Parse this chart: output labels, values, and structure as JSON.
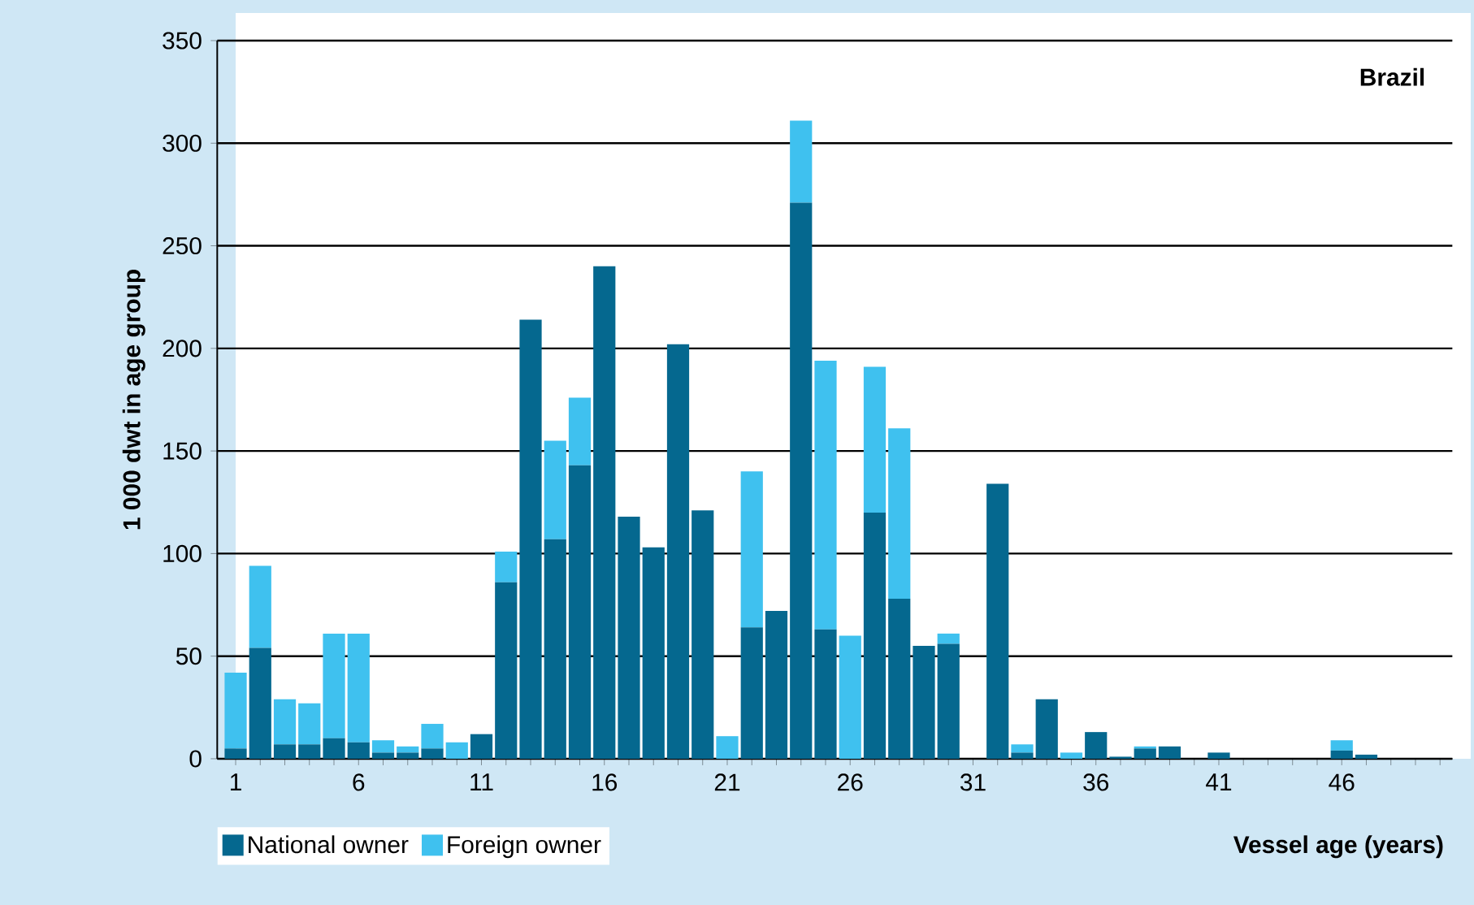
{
  "chart_data": {
    "type": "bar",
    "title": "Brazil",
    "xlabel": "Vessel age (years)",
    "ylabel": "1 000 dwt in age group",
    "categories": [
      "1",
      null,
      null,
      null,
      null,
      "6",
      null,
      null,
      null,
      null,
      "11",
      null,
      null,
      null,
      null,
      "16",
      null,
      null,
      null,
      null,
      "21",
      null,
      null,
      null,
      null,
      "26",
      null,
      null,
      null,
      null,
      "31",
      null,
      null,
      null,
      null,
      "36",
      null,
      null,
      null,
      null,
      "41",
      null,
      null,
      null,
      null,
      "46",
      null,
      null,
      null,
      null
    ],
    "series": [
      {
        "name": "National owner",
        "color": "#05688f",
        "values": [
          5,
          54,
          7,
          7,
          10,
          8,
          3,
          3,
          5,
          0,
          12,
          86,
          214,
          107,
          143,
          240,
          118,
          103,
          202,
          121,
          0,
          64,
          72,
          271,
          63,
          0,
          120,
          78,
          55,
          56,
          0,
          134,
          3,
          29,
          0,
          13,
          1,
          5,
          6,
          0,
          3,
          0,
          0,
          0,
          0,
          4,
          2,
          0,
          0,
          0
        ]
      },
      {
        "name": "Foreign owner",
        "color": "#3fc1ef",
        "values": [
          37,
          40,
          22,
          20,
          51,
          53,
          6,
          3,
          12,
          8,
          0,
          15,
          0,
          48,
          33,
          0,
          0,
          0,
          0,
          0,
          11,
          76,
          0,
          40,
          131,
          60,
          71,
          83,
          0,
          5,
          0,
          0,
          4,
          0,
          3,
          0,
          0,
          1,
          0,
          0,
          0,
          0,
          0,
          0,
          0,
          5,
          0,
          0,
          0,
          0
        ]
      }
    ],
    "stacked": true,
    "ylim": [
      0,
      350
    ],
    "yticks": [
      0,
      50,
      100,
      150,
      200,
      250,
      300,
      350
    ],
    "grid": "y",
    "legend": "bottom left"
  }
}
